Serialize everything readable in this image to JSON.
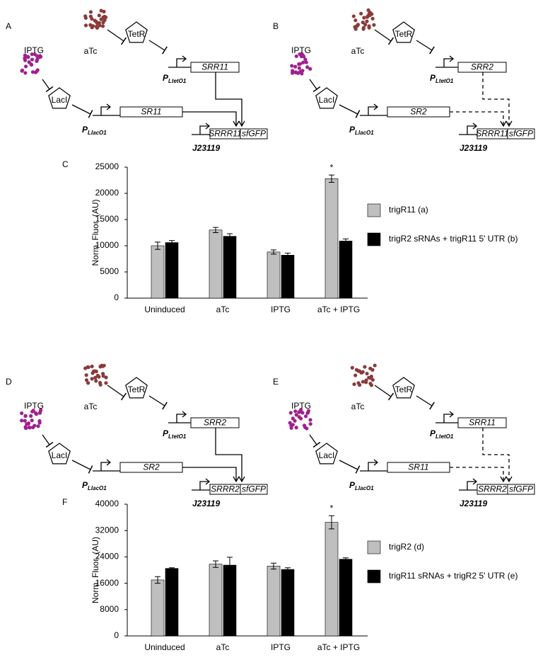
{
  "diagrams": [
    {
      "label": "A",
      "inducer_top": "aTc",
      "repressor_top": "TetR",
      "promoter_top": {
        "p": "P",
        "sub": "LtetO1"
      },
      "gene_top": "SRR11",
      "inducer_left": "IPTG",
      "repressor_left": "LacI",
      "promoter_left": {
        "p": "P",
        "sub": "LlacO1"
      },
      "gene_left": "SR11",
      "reporter_promoter": "J23119",
      "reporter_gene": "SRRR11",
      "reporter_tag": "sfGFP",
      "line_style": "solid"
    },
    {
      "label": "B",
      "inducer_top": "aTc",
      "repressor_top": "TetR",
      "promoter_top": {
        "p": "P",
        "sub": "LtetO1"
      },
      "gene_top": "SRR2",
      "inducer_left": "IPTG",
      "repressor_left": "LacI",
      "promoter_left": {
        "p": "P",
        "sub": "LlacO1"
      },
      "gene_left": "SR2",
      "reporter_promoter": "J23119",
      "reporter_gene": "SRRR11",
      "reporter_tag": "sfGFP",
      "line_style": "dashed"
    },
    {
      "label": "D",
      "inducer_top": "aTc",
      "repressor_top": "TetR",
      "promoter_top": {
        "p": "P",
        "sub": "LtetO1"
      },
      "gene_top": "SRR2",
      "inducer_left": "IPTG",
      "repressor_left": "LacI",
      "promoter_left": {
        "p": "P",
        "sub": "LlacO1"
      },
      "gene_left": "SR2",
      "reporter_promoter": "J23119",
      "reporter_gene": "SRRR2",
      "reporter_tag": "sfGFP",
      "line_style": "solid"
    },
    {
      "label": "E",
      "inducer_top": "aTc",
      "repressor_top": "TetR",
      "promoter_top": {
        "p": "P",
        "sub": "LtetO1"
      },
      "gene_top": "SRR11",
      "inducer_left": "IPTG",
      "repressor_left": "LacI",
      "promoter_left": {
        "p": "P",
        "sub": "LlacO1"
      },
      "gene_left": "SR11",
      "reporter_promoter": "J23119",
      "reporter_gene": "SRRR2",
      "reporter_tag": "sfGFP",
      "line_style": "dashed"
    }
  ],
  "chart_data": [
    {
      "type": "bar",
      "panel_label": "C",
      "ylabel": "Norm. Fluor. (AU)",
      "categories": [
        "Uninduced",
        "aTc",
        "IPTG",
        "aTc + IPTG"
      ],
      "series": [
        {
          "name": "trigR11 (a)",
          "color": "#bfbfbf",
          "values": [
            10000,
            13000,
            8800,
            22800
          ],
          "errors": [
            700,
            500,
            400,
            700
          ]
        },
        {
          "name": "trigR2 sRNAs + trigR11 5' UTR (b)",
          "color": "#000000",
          "values": [
            10600,
            11800,
            8200,
            10900
          ],
          "errors": [
            400,
            500,
            400,
            400
          ]
        }
      ],
      "annotation": "*",
      "ylim": [
        0,
        25000
      ],
      "yticks": [
        0,
        5000,
        10000,
        15000,
        20000,
        25000
      ]
    },
    {
      "type": "bar",
      "panel_label": "F",
      "ylabel": "Norm. Fluor. (AU)",
      "categories": [
        "Uninduced",
        "aTc",
        "IPTG",
        "aTc + IPTG"
      ],
      "series": [
        {
          "name": "trigR2 (d)",
          "color": "#bfbfbf",
          "values": [
            17000,
            21800,
            21200,
            34500
          ],
          "errors": [
            1000,
            1000,
            900,
            2000
          ]
        },
        {
          "name": "trigR11 sRNAs + trigR2 5' UTR (e)",
          "color": "#000000",
          "values": [
            20500,
            21500,
            20200,
            23300
          ],
          "errors": [
            200,
            2400,
            500,
            400
          ]
        }
      ],
      "annotation": "*",
      "ylim": [
        0,
        40000
      ],
      "yticks": [
        0,
        8000,
        16000,
        24000,
        32000,
        40000
      ]
    }
  ]
}
